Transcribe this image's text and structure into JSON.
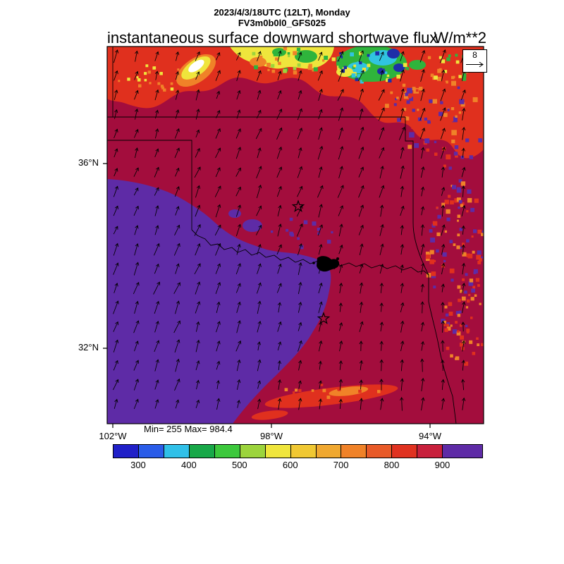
{
  "header": {
    "datetime_line": "2023/4/3/18UTC (12LT), Monday",
    "model_line": "FV3m0b0l0_GFS025"
  },
  "title": {
    "text": "instantaneous surface downward shortwave flux",
    "units": "W/m**2"
  },
  "map": {
    "stats": "Min= 255 Max= 984.4",
    "lat_tick_labels": [
      "36°N",
      "32°N"
    ],
    "lon_tick_labels": [
      "102°W",
      "98°W",
      "94°W"
    ],
    "ref_vector": {
      "label": "8"
    }
  },
  "colorbar": {
    "tick_labels": [
      "300",
      "400",
      "500",
      "600",
      "700",
      "800",
      "900"
    ],
    "colors": [
      "#2020C8",
      "#2A5CE8",
      "#30C0E8",
      "#18A848",
      "#3CC83C",
      "#9CD43C",
      "#EFE53C",
      "#F0C833",
      "#F0A830",
      "#F08228",
      "#E85A28",
      "#E03220",
      "#C8203C",
      "#5E2BA6"
    ]
  },
  "palette": {
    "field_base": "#A30D3D",
    "field_purple": "#5E2BA6",
    "bright_red": "#E0301E",
    "orange": "#F08228",
    "yellow": "#EFE53C",
    "yellow_green": "#9CD43C",
    "green": "#2FB43C",
    "cyan": "#30C4E0",
    "navy": "#1E2FA8",
    "white": "#FFFFFF",
    "border": "#000000"
  },
  "chart_data": {
    "type": "heatmap",
    "title": "instantaneous surface downward shortwave flux",
    "units": "W/m**2",
    "valid_time": "2023/4/3/18UTC (12LT), Monday",
    "model_run": "FV3m0b0l0_GFS025",
    "stat_min": 255,
    "stat_max": 984.4,
    "colorbar_levels": [
      300,
      400,
      500,
      600,
      700,
      800,
      900
    ],
    "colorbar_level_step": 50,
    "colorbar_range": [
      250,
      900
    ],
    "over_color_value": "> 900 (purple)",
    "lat_ticks": [
      "36°N",
      "32°N"
    ],
    "lon_ticks": [
      "102°W",
      "98°W",
      "94°W"
    ],
    "wind_reference_vector": 8,
    "wind_field": "surface wind vectors, mostly southerly (arrows pointing north-northeast)",
    "map_region": "Texas / Oklahoma (state borders, Red River, two star city markers)",
    "field_summary": [
      {
        "region": "west and southwest Texas",
        "approx_value": "900-984 W/m**2 (purple, clear-sky maximum)"
      },
      {
        "region": "central domain, most of TX and OK",
        "approx_value": "850-900 W/m**2 (dark crimson)"
      },
      {
        "region": "northern band along Kansas border",
        "approx_value": "300-850 W/m**2 (cloud band: red, orange, yellow, green, cyan, blue minima)"
      },
      {
        "region": "eastern Oklahoma / Arkansas edge",
        "approx_value": "mottled 700-900 W/m**2 (scattered clouds)"
      },
      {
        "region": "southeast Texas streak",
        "approx_value": "700-850 W/m**2 (thin cloud streak)"
      }
    ]
  }
}
